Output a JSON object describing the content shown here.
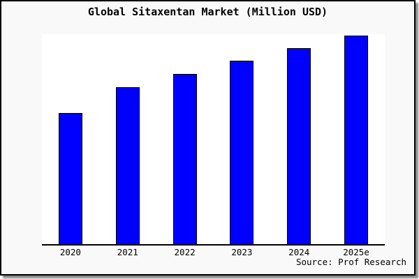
{
  "title": "Global Sitaxentan Market (Million USD)",
  "source_credit": "Source: Prof Research",
  "colors": {
    "bar_fill": "#0000ff",
    "bar_border": "#000000",
    "canvas_background": "#f9f9f9",
    "plot_background": "#ffffff",
    "axis": "#000000",
    "text": "#000000"
  },
  "chart_data": {
    "type": "bar",
    "title": "Global Sitaxentan Market (Million USD)",
    "categories": [
      "2020",
      "2021",
      "2022",
      "2023",
      "2024",
      "2025e"
    ],
    "values": [
      62.5,
      74.8,
      81.2,
      87.3,
      93.3,
      99.4
    ],
    "value_note": "No y-axis ticks shown; values are relative bar heights estimated as percent of plot height",
    "xlabel": "",
    "ylabel": "",
    "ylim": [
      0,
      100
    ],
    "grid": false,
    "legend": "none",
    "annotations": [
      "Source: Prof Research"
    ]
  }
}
